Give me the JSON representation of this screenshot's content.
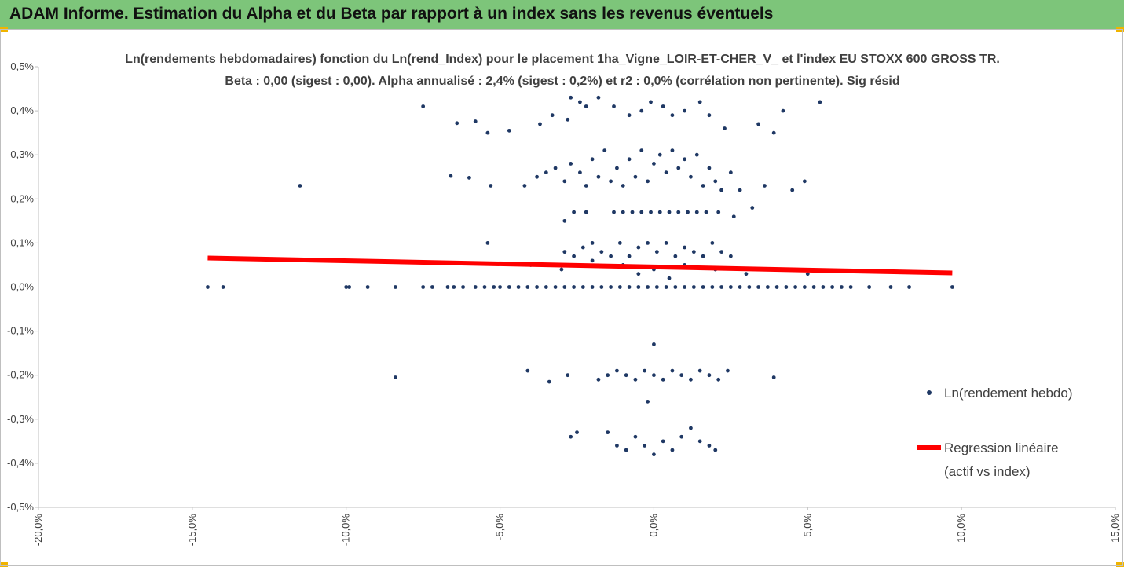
{
  "header": {
    "title": "ADAM Informe. Estimation du Alpha et du Beta par rapport à un index sans les revenus éventuels"
  },
  "colors": {
    "header_bg": "#7dc57a",
    "points": "#1f3864",
    "regression": "#ff0000",
    "corner": "#f0b400"
  },
  "chart_data": {
    "type": "scatter",
    "title": "Ln(rendements hebdomadaires) fonction du Ln(rend_Index)  pour le placement 1ha_Vigne_LOIR-ET-CHER_V_  et l'index EU STOXX 600 GROSS TR.",
    "subtitle": "Beta : 0,00 (sigest : 0,00). Alpha annualisé : 2,4% (sigest : 0,2%) et r2 : 0,0% (corrélation non pertinente). Sig résid",
    "xlim": [
      -0.2,
      0.15
    ],
    "ylim": [
      -0.005,
      0.005
    ],
    "x_ticks": [
      {
        "v": -0.2,
        "label": "-20,0%"
      },
      {
        "v": -0.15,
        "label": "-15,0%"
      },
      {
        "v": -0.1,
        "label": "-10,0%"
      },
      {
        "v": -0.05,
        "label": "-5,0%"
      },
      {
        "v": 0.0,
        "label": "0,0%"
      },
      {
        "v": 0.05,
        "label": "5,0%"
      },
      {
        "v": 0.1,
        "label": "10,0%"
      },
      {
        "v": 0.15,
        "label": "15,0%"
      }
    ],
    "y_ticks": [
      {
        "v": 0.005,
        "label": "0,5%"
      },
      {
        "v": 0.004,
        "label": "0,4%"
      },
      {
        "v": 0.003,
        "label": "0,3%"
      },
      {
        "v": 0.002,
        "label": "0,2%"
      },
      {
        "v": 0.001,
        "label": "0,1%"
      },
      {
        "v": 0.0,
        "label": "0,0%"
      },
      {
        "v": -0.001,
        "label": "-0,1%"
      },
      {
        "v": -0.002,
        "label": "-0,2%"
      },
      {
        "v": -0.003,
        "label": "-0,3%"
      },
      {
        "v": -0.004,
        "label": "-0,4%"
      },
      {
        "v": -0.005,
        "label": "-0,5%"
      }
    ],
    "series": [
      {
        "name": "Ln(rendement hebdo)",
        "type": "scatter",
        "points": [
          [
            -0.145,
            0
          ],
          [
            -0.14,
            0
          ],
          [
            -0.1,
            0
          ],
          [
            -0.099,
            0
          ],
          [
            -0.093,
            0
          ],
          [
            -0.084,
            0
          ],
          [
            -0.075,
            0
          ],
          [
            -0.072,
            0
          ],
          [
            -0.067,
            0
          ],
          [
            -0.065,
            0
          ],
          [
            -0.062,
            0
          ],
          [
            -0.058,
            0
          ],
          [
            -0.055,
            0
          ],
          [
            -0.052,
            0
          ],
          [
            -0.05,
            0
          ],
          [
            -0.047,
            0
          ],
          [
            -0.044,
            0
          ],
          [
            -0.041,
            0
          ],
          [
            -0.038,
            0
          ],
          [
            -0.035,
            0
          ],
          [
            -0.032,
            0
          ],
          [
            -0.029,
            0
          ],
          [
            -0.026,
            0
          ],
          [
            -0.023,
            0
          ],
          [
            -0.02,
            0
          ],
          [
            -0.017,
            0
          ],
          [
            -0.014,
            0
          ],
          [
            -0.011,
            0
          ],
          [
            -0.008,
            0
          ],
          [
            -0.005,
            0
          ],
          [
            -0.002,
            0
          ],
          [
            0.001,
            0
          ],
          [
            0.004,
            0
          ],
          [
            0.007,
            0
          ],
          [
            0.01,
            0
          ],
          [
            0.013,
            0
          ],
          [
            0.016,
            0
          ],
          [
            0.019,
            0
          ],
          [
            0.022,
            0
          ],
          [
            0.025,
            0
          ],
          [
            0.028,
            0
          ],
          [
            0.031,
            0
          ],
          [
            0.034,
            0
          ],
          [
            0.037,
            0
          ],
          [
            0.04,
            0
          ],
          [
            0.043,
            0
          ],
          [
            0.046,
            0
          ],
          [
            0.049,
            0
          ],
          [
            0.052,
            0
          ],
          [
            0.055,
            0
          ],
          [
            0.058,
            0
          ],
          [
            0.061,
            0
          ],
          [
            0.064,
            0
          ],
          [
            0.07,
            0
          ],
          [
            0.077,
            0
          ],
          [
            0.083,
            0
          ],
          [
            0.097,
            0
          ],
          [
            -0.115,
            0.0023
          ],
          [
            -0.075,
            0.0041
          ],
          [
            -0.064,
            0.00372
          ],
          [
            -0.058,
            0.00376
          ],
          [
            -0.054,
            0.0035
          ],
          [
            -0.047,
            0.00355
          ],
          [
            -0.037,
            0.0037
          ],
          [
            -0.033,
            0.0039
          ],
          [
            -0.028,
            0.0038
          ],
          [
            -0.027,
            0.0043
          ],
          [
            -0.024,
            0.0042
          ],
          [
            -0.022,
            0.0041
          ],
          [
            -0.018,
            0.0043
          ],
          [
            -0.013,
            0.0041
          ],
          [
            -0.008,
            0.0039
          ],
          [
            -0.004,
            0.004
          ],
          [
            -0.001,
            0.0042
          ],
          [
            0.003,
            0.0041
          ],
          [
            0.006,
            0.0039
          ],
          [
            0.01,
            0.004
          ],
          [
            0.015,
            0.0042
          ],
          [
            0.018,
            0.0039
          ],
          [
            0.023,
            0.0036
          ],
          [
            0.034,
            0.0037
          ],
          [
            0.039,
            0.0035
          ],
          [
            0.042,
            0.004
          ],
          [
            0.054,
            0.0042
          ],
          [
            -0.066,
            0.00252
          ],
          [
            -0.06,
            0.00248
          ],
          [
            -0.053,
            0.0023
          ],
          [
            -0.042,
            0.0023
          ],
          [
            -0.038,
            0.0025
          ],
          [
            -0.035,
            0.0026
          ],
          [
            -0.032,
            0.0027
          ],
          [
            -0.029,
            0.0024
          ],
          [
            -0.027,
            0.0028
          ],
          [
            -0.024,
            0.0026
          ],
          [
            -0.022,
            0.0023
          ],
          [
            -0.02,
            0.0029
          ],
          [
            -0.018,
            0.0025
          ],
          [
            -0.016,
            0.0031
          ],
          [
            -0.014,
            0.0024
          ],
          [
            -0.012,
            0.0027
          ],
          [
            -0.01,
            0.0023
          ],
          [
            -0.008,
            0.0029
          ],
          [
            -0.006,
            0.0025
          ],
          [
            -0.004,
            0.0031
          ],
          [
            -0.002,
            0.0024
          ],
          [
            0.0,
            0.0028
          ],
          [
            0.002,
            0.003
          ],
          [
            0.004,
            0.0026
          ],
          [
            0.006,
            0.0031
          ],
          [
            0.008,
            0.0027
          ],
          [
            0.01,
            0.0029
          ],
          [
            0.012,
            0.0025
          ],
          [
            0.014,
            0.003
          ],
          [
            0.016,
            0.0023
          ],
          [
            0.018,
            0.0027
          ],
          [
            0.02,
            0.0024
          ],
          [
            0.022,
            0.0022
          ],
          [
            0.025,
            0.0026
          ],
          [
            0.028,
            0.0022
          ],
          [
            0.032,
            0.0018
          ],
          [
            0.036,
            0.0023
          ],
          [
            0.045,
            0.0022
          ],
          [
            0.049,
            0.0024
          ],
          [
            -0.029,
            0.0015
          ],
          [
            -0.026,
            0.0017
          ],
          [
            -0.022,
            0.0017
          ],
          [
            -0.013,
            0.0017
          ],
          [
            -0.01,
            0.0017
          ],
          [
            -0.007,
            0.0017
          ],
          [
            -0.004,
            0.0017
          ],
          [
            -0.001,
            0.0017
          ],
          [
            0.002,
            0.0017
          ],
          [
            0.005,
            0.0017
          ],
          [
            0.008,
            0.0017
          ],
          [
            0.011,
            0.0017
          ],
          [
            0.014,
            0.0017
          ],
          [
            0.017,
            0.0017
          ],
          [
            0.021,
            0.0017
          ],
          [
            0.026,
            0.0016
          ],
          [
            -0.054,
            0.001
          ],
          [
            -0.029,
            0.0008
          ],
          [
            -0.026,
            0.0007
          ],
          [
            -0.023,
            0.0009
          ],
          [
            -0.02,
            0.001
          ],
          [
            -0.017,
            0.0008
          ],
          [
            -0.014,
            0.0007
          ],
          [
            -0.011,
            0.001
          ],
          [
            -0.008,
            0.0007
          ],
          [
            -0.005,
            0.0009
          ],
          [
            -0.002,
            0.001
          ],
          [
            0.001,
            0.0008
          ],
          [
            0.004,
            0.001
          ],
          [
            0.007,
            0.0007
          ],
          [
            0.01,
            0.0009
          ],
          [
            0.013,
            0.0008
          ],
          [
            0.016,
            0.0007
          ],
          [
            0.019,
            0.001
          ],
          [
            0.022,
            0.0008
          ],
          [
            0.025,
            0.0007
          ],
          [
            -0.04,
            0.0005
          ],
          [
            -0.03,
            0.0004
          ],
          [
            -0.02,
            0.0006
          ],
          [
            -0.01,
            0.0005
          ],
          [
            0.0,
            0.0004
          ],
          [
            0.01,
            0.0005
          ],
          [
            0.02,
            0.0004
          ],
          [
            0.03,
            0.0003
          ],
          [
            0.04,
            0.0004
          ],
          [
            0.05,
            0.0003
          ],
          [
            0.005,
            0.0002
          ],
          [
            -0.005,
            0.0003
          ],
          [
            0.0,
            -0.0013
          ],
          [
            -0.002,
            -0.0026
          ],
          [
            -0.084,
            -0.00205
          ],
          [
            -0.041,
            -0.0019
          ],
          [
            -0.034,
            -0.00215
          ],
          [
            -0.028,
            -0.002
          ],
          [
            -0.018,
            -0.0021
          ],
          [
            -0.015,
            -0.002
          ],
          [
            -0.012,
            -0.0019
          ],
          [
            -0.009,
            -0.002
          ],
          [
            -0.006,
            -0.0021
          ],
          [
            -0.003,
            -0.0019
          ],
          [
            0.0,
            -0.002
          ],
          [
            0.003,
            -0.0021
          ],
          [
            0.006,
            -0.0019
          ],
          [
            0.009,
            -0.002
          ],
          [
            0.012,
            -0.0021
          ],
          [
            0.015,
            -0.0019
          ],
          [
            0.018,
            -0.002
          ],
          [
            0.021,
            -0.0021
          ],
          [
            0.024,
            -0.0019
          ],
          [
            0.039,
            -0.00205
          ],
          [
            -0.027,
            -0.0034
          ],
          [
            -0.025,
            -0.0033
          ],
          [
            -0.015,
            -0.0033
          ],
          [
            -0.012,
            -0.0036
          ],
          [
            -0.009,
            -0.0037
          ],
          [
            -0.006,
            -0.0034
          ],
          [
            -0.003,
            -0.0036
          ],
          [
            0.0,
            -0.0038
          ],
          [
            0.003,
            -0.0035
          ],
          [
            0.006,
            -0.0037
          ],
          [
            0.009,
            -0.0034
          ],
          [
            0.012,
            -0.0032
          ],
          [
            0.015,
            -0.0035
          ],
          [
            0.018,
            -0.0036
          ],
          [
            0.02,
            -0.0037
          ]
        ]
      },
      {
        "name": "Regression linéaire (actif vs index)",
        "type": "line",
        "points": [
          [
            -0.145,
            0.00066
          ],
          [
            0.097,
            0.00032
          ]
        ]
      }
    ],
    "legend": {
      "position": "right",
      "scatter_label": "Ln(rendement hebdo)",
      "line_label_1": "Regression linéaire",
      "line_label_2": "(actif vs index)"
    },
    "grid": false
  }
}
